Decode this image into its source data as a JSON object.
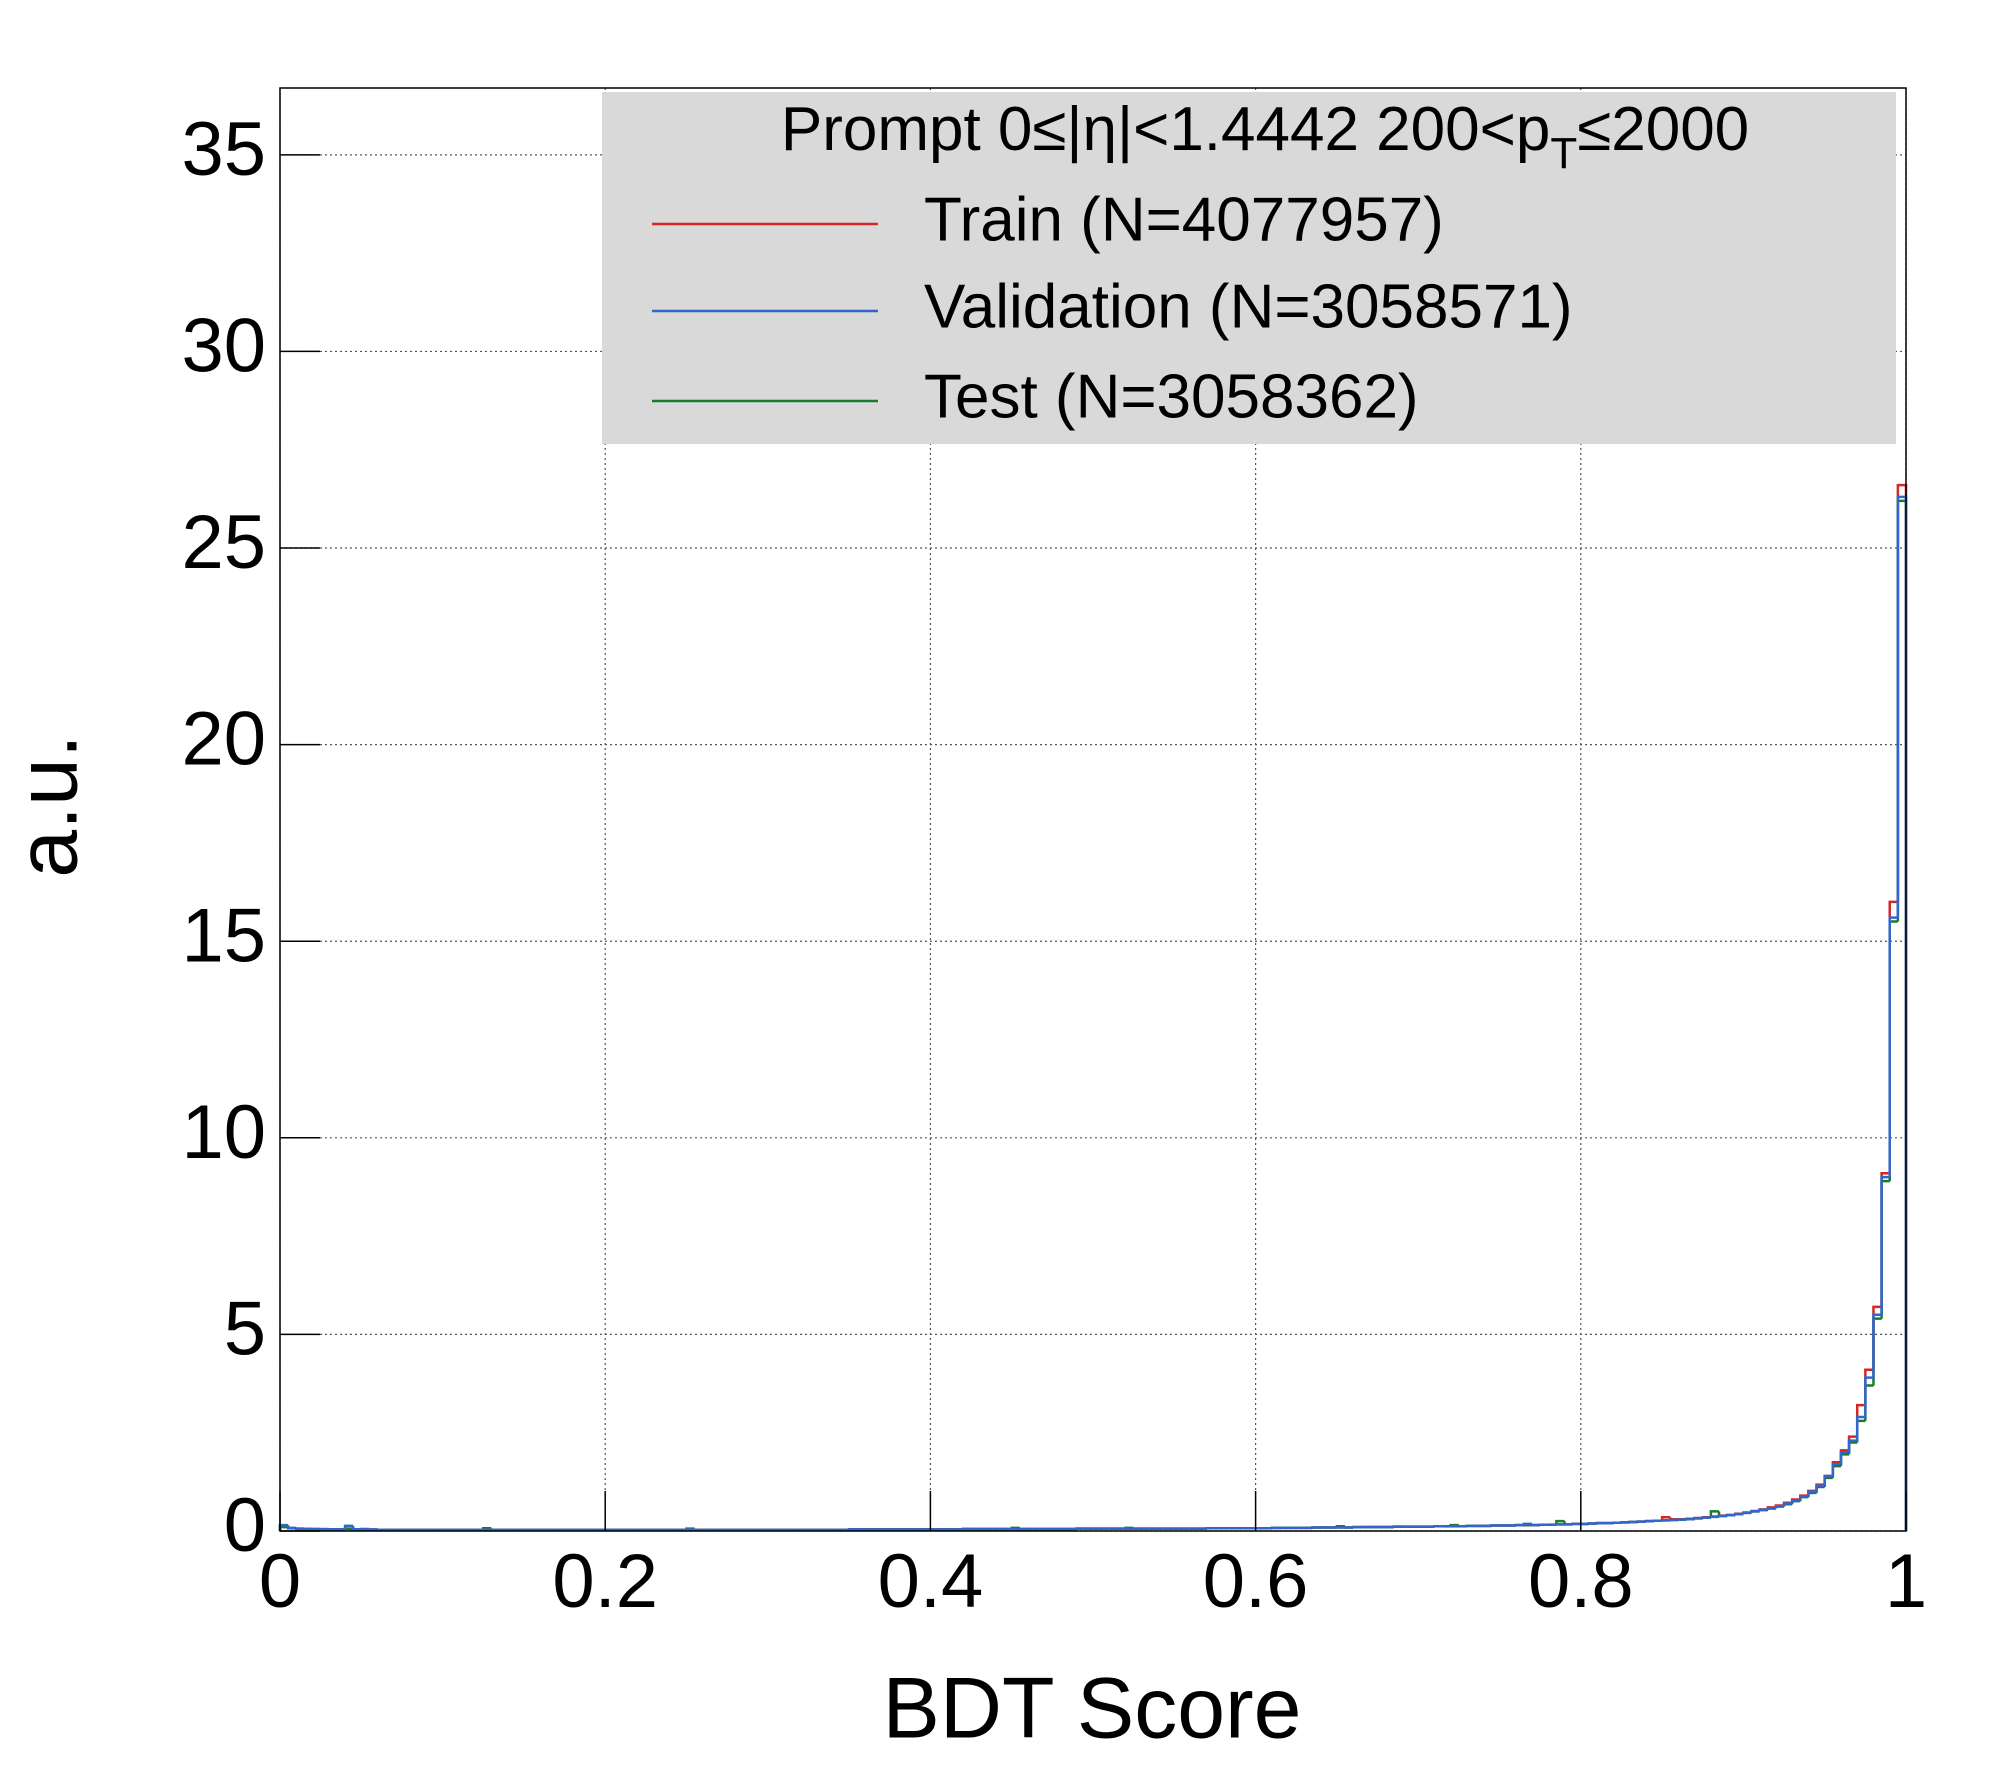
{
  "chart_data": {
    "type": "histogram",
    "xlabel": "BDT Score",
    "ylabel": "a.u.",
    "legend_title": [
      "Prompt  0≤|η|<1.4442  200<p",
      "T",
      "≤2000"
    ],
    "xlim": [
      0,
      1
    ],
    "ylim": [
      0,
      36.7
    ],
    "xticks": [
      0,
      0.2,
      0.4,
      0.6,
      0.8,
      1
    ],
    "yticks": [
      0,
      5,
      10,
      15,
      20,
      25,
      30,
      35
    ],
    "grid": true,
    "legend": "upper right",
    "bins": [
      0,
      0.005,
      0.01,
      0.015,
      0.02,
      0.025,
      0.03,
      0.035,
      0.04,
      0.045,
      0.05,
      0.055,
      0.06,
      0.065,
      0.07,
      0.075,
      0.08,
      0.085,
      0.09,
      0.095,
      0.1,
      0.105,
      0.11,
      0.115,
      0.12,
      0.125,
      0.13,
      0.135,
      0.14,
      0.145,
      0.15,
      0.155,
      0.16,
      0.165,
      0.17,
      0.175,
      0.18,
      0.185,
      0.19,
      0.195,
      0.2,
      0.205,
      0.21,
      0.215,
      0.22,
      0.225,
      0.23,
      0.235,
      0.24,
      0.245,
      0.25,
      0.255,
      0.26,
      0.265,
      0.27,
      0.275,
      0.28,
      0.285,
      0.29,
      0.295,
      0.3,
      0.305,
      0.31,
      0.315,
      0.32,
      0.325,
      0.33,
      0.335,
      0.34,
      0.345,
      0.35,
      0.355,
      0.36,
      0.365,
      0.37,
      0.375,
      0.38,
      0.385,
      0.39,
      0.395,
      0.4,
      0.405,
      0.41,
      0.415,
      0.42,
      0.425,
      0.43,
      0.435,
      0.44,
      0.445,
      0.45,
      0.455,
      0.46,
      0.465,
      0.47,
      0.475,
      0.48,
      0.485,
      0.49,
      0.495,
      0.5,
      0.505,
      0.51,
      0.515,
      0.52,
      0.525,
      0.53,
      0.535,
      0.54,
      0.545,
      0.55,
      0.555,
      0.56,
      0.565,
      0.57,
      0.575,
      0.58,
      0.585,
      0.59,
      0.595,
      0.6,
      0.605,
      0.61,
      0.615,
      0.62,
      0.625,
      0.63,
      0.635,
      0.64,
      0.645,
      0.65,
      0.655,
      0.66,
      0.665,
      0.67,
      0.675,
      0.68,
      0.685,
      0.69,
      0.695,
      0.7,
      0.705,
      0.71,
      0.715,
      0.72,
      0.725,
      0.73,
      0.735,
      0.74,
      0.745,
      0.75,
      0.755,
      0.76,
      0.765,
      0.77,
      0.775,
      0.78,
      0.785,
      0.79,
      0.795,
      0.8,
      0.805,
      0.81,
      0.815,
      0.82,
      0.825,
      0.83,
      0.835,
      0.84,
      0.845,
      0.85,
      0.855,
      0.86,
      0.865,
      0.87,
      0.875,
      0.88,
      0.885,
      0.89,
      0.895,
      0.9,
      0.905,
      0.91,
      0.915,
      0.92,
      0.925,
      0.93,
      0.935,
      0.94,
      0.945,
      0.95,
      0.955,
      0.96,
      0.965,
      0.97,
      0.975,
      0.98,
      0.985,
      0.99,
      0.995,
      1
    ],
    "series": [
      {
        "name": "Train (N=4077957)",
        "color": "#d62728",
        "values": [
          0.12,
          0.07,
          0.06,
          0.05,
          0.05,
          0.04,
          0.04,
          0.04,
          0.06,
          0.04,
          0.04,
          0.04,
          0.03,
          0.03,
          0.03,
          0.03,
          0.03,
          0.03,
          0.03,
          0.03,
          0.03,
          0.03,
          0.03,
          0.03,
          0.03,
          0.03,
          0.03,
          0.03,
          0.03,
          0.03,
          0.03,
          0.03,
          0.03,
          0.03,
          0.03,
          0.03,
          0.03,
          0.03,
          0.03,
          0.03,
          0.03,
          0.03,
          0.03,
          0.03,
          0.03,
          0.03,
          0.03,
          0.03,
          0.03,
          0.03,
          0.03,
          0.03,
          0.03,
          0.03,
          0.03,
          0.03,
          0.03,
          0.03,
          0.03,
          0.03,
          0.03,
          0.03,
          0.03,
          0.03,
          0.03,
          0.03,
          0.03,
          0.03,
          0.03,
          0.03,
          0.04,
          0.04,
          0.04,
          0.04,
          0.04,
          0.04,
          0.04,
          0.04,
          0.04,
          0.04,
          0.04,
          0.04,
          0.04,
          0.04,
          0.05,
          0.05,
          0.05,
          0.05,
          0.05,
          0.05,
          0.05,
          0.05,
          0.05,
          0.05,
          0.05,
          0.05,
          0.05,
          0.05,
          0.06,
          0.06,
          0.06,
          0.06,
          0.06,
          0.06,
          0.06,
          0.06,
          0.06,
          0.06,
          0.06,
          0.06,
          0.06,
          0.06,
          0.06,
          0.06,
          0.07,
          0.07,
          0.07,
          0.07,
          0.07,
          0.07,
          0.07,
          0.07,
          0.08,
          0.08,
          0.08,
          0.08,
          0.08,
          0.09,
          0.09,
          0.09,
          0.09,
          0.09,
          0.1,
          0.1,
          0.1,
          0.1,
          0.1,
          0.11,
          0.11,
          0.11,
          0.11,
          0.11,
          0.12,
          0.12,
          0.12,
          0.12,
          0.13,
          0.13,
          0.13,
          0.14,
          0.14,
          0.14,
          0.15,
          0.15,
          0.15,
          0.16,
          0.16,
          0.17,
          0.17,
          0.18,
          0.18,
          0.19,
          0.2,
          0.2,
          0.21,
          0.22,
          0.23,
          0.24,
          0.25,
          0.26,
          0.35,
          0.3,
          0.3,
          0.31,
          0.33,
          0.35,
          0.37,
          0.39,
          0.41,
          0.44,
          0.47,
          0.51,
          0.55,
          0.6,
          0.65,
          0.72,
          0.8,
          0.9,
          1.02,
          1.18,
          1.4,
          1.75,
          2.05,
          2.4,
          3.2,
          4.1,
          5.7,
          9.1,
          16.0,
          26.6
        ]
      },
      {
        "name": "Validation (N=3058571)",
        "color": "#3366cc",
        "values": [
          0.15,
          0.08,
          0.06,
          0.05,
          0.05,
          0.05,
          0.04,
          0.04,
          0.13,
          0.04,
          0.05,
          0.04,
          0.03,
          0.03,
          0.03,
          0.03,
          0.03,
          0.03,
          0.03,
          0.03,
          0.03,
          0.03,
          0.03,
          0.03,
          0.03,
          0.03,
          0.03,
          0.03,
          0.03,
          0.03,
          0.03,
          0.03,
          0.03,
          0.03,
          0.03,
          0.03,
          0.03,
          0.03,
          0.03,
          0.03,
          0.03,
          0.03,
          0.03,
          0.03,
          0.03,
          0.03,
          0.03,
          0.03,
          0.03,
          0.03,
          0.04,
          0.03,
          0.03,
          0.03,
          0.03,
          0.03,
          0.03,
          0.03,
          0.03,
          0.03,
          0.03,
          0.03,
          0.03,
          0.03,
          0.03,
          0.03,
          0.03,
          0.03,
          0.03,
          0.03,
          0.04,
          0.04,
          0.04,
          0.04,
          0.04,
          0.04,
          0.04,
          0.04,
          0.04,
          0.04,
          0.04,
          0.04,
          0.04,
          0.04,
          0.05,
          0.05,
          0.05,
          0.05,
          0.05,
          0.05,
          0.05,
          0.05,
          0.05,
          0.05,
          0.05,
          0.05,
          0.05,
          0.05,
          0.06,
          0.06,
          0.06,
          0.06,
          0.06,
          0.06,
          0.06,
          0.06,
          0.06,
          0.06,
          0.06,
          0.06,
          0.06,
          0.06,
          0.06,
          0.06,
          0.07,
          0.07,
          0.07,
          0.07,
          0.07,
          0.07,
          0.07,
          0.07,
          0.08,
          0.08,
          0.08,
          0.08,
          0.08,
          0.09,
          0.09,
          0.09,
          0.09,
          0.09,
          0.1,
          0.1,
          0.1,
          0.1,
          0.1,
          0.11,
          0.11,
          0.11,
          0.11,
          0.11,
          0.12,
          0.12,
          0.12,
          0.12,
          0.13,
          0.13,
          0.13,
          0.14,
          0.14,
          0.14,
          0.15,
          0.18,
          0.15,
          0.16,
          0.16,
          0.17,
          0.17,
          0.18,
          0.18,
          0.19,
          0.2,
          0.2,
          0.21,
          0.22,
          0.23,
          0.24,
          0.25,
          0.26,
          0.27,
          0.28,
          0.29,
          0.3,
          0.32,
          0.34,
          0.36,
          0.38,
          0.4,
          0.43,
          0.46,
          0.5,
          0.54,
          0.58,
          0.63,
          0.7,
          0.78,
          0.88,
          1.0,
          1.15,
          1.4,
          1.7,
          2.0,
          2.3,
          2.9,
          3.9,
          5.5,
          9.0,
          15.6,
          26.3
        ]
      },
      {
        "name": "Test (N=3058362)",
        "color": "#1a7a2e",
        "values": [
          0.1,
          0.07,
          0.05,
          0.05,
          0.04,
          0.04,
          0.04,
          0.04,
          0.05,
          0.04,
          0.04,
          0.03,
          0.03,
          0.03,
          0.03,
          0.03,
          0.03,
          0.03,
          0.03,
          0.03,
          0.03,
          0.03,
          0.03,
          0.03,
          0.03,
          0.07,
          0.03,
          0.03,
          0.03,
          0.03,
          0.03,
          0.03,
          0.03,
          0.03,
          0.03,
          0.03,
          0.03,
          0.03,
          0.03,
          0.03,
          0.03,
          0.03,
          0.03,
          0.03,
          0.03,
          0.03,
          0.03,
          0.03,
          0.03,
          0.03,
          0.06,
          0.03,
          0.03,
          0.03,
          0.03,
          0.03,
          0.03,
          0.03,
          0.03,
          0.03,
          0.03,
          0.03,
          0.03,
          0.03,
          0.03,
          0.03,
          0.03,
          0.03,
          0.03,
          0.03,
          0.04,
          0.04,
          0.04,
          0.04,
          0.04,
          0.04,
          0.04,
          0.04,
          0.04,
          0.04,
          0.04,
          0.04,
          0.04,
          0.04,
          0.05,
          0.05,
          0.05,
          0.05,
          0.05,
          0.05,
          0.08,
          0.05,
          0.05,
          0.05,
          0.05,
          0.05,
          0.05,
          0.05,
          0.06,
          0.06,
          0.06,
          0.06,
          0.06,
          0.06,
          0.08,
          0.06,
          0.06,
          0.06,
          0.06,
          0.06,
          0.06,
          0.06,
          0.06,
          0.06,
          0.07,
          0.07,
          0.07,
          0.07,
          0.07,
          0.07,
          0.07,
          0.07,
          0.08,
          0.08,
          0.08,
          0.08,
          0.08,
          0.09,
          0.09,
          0.09,
          0.12,
          0.09,
          0.1,
          0.1,
          0.1,
          0.1,
          0.1,
          0.11,
          0.11,
          0.11,
          0.11,
          0.11,
          0.12,
          0.12,
          0.15,
          0.12,
          0.13,
          0.13,
          0.13,
          0.14,
          0.14,
          0.14,
          0.15,
          0.15,
          0.15,
          0.16,
          0.16,
          0.25,
          0.17,
          0.18,
          0.18,
          0.19,
          0.2,
          0.2,
          0.21,
          0.22,
          0.23,
          0.24,
          0.25,
          0.26,
          0.27,
          0.28,
          0.29,
          0.3,
          0.32,
          0.34,
          0.5,
          0.38,
          0.4,
          0.43,
          0.46,
          0.5,
          0.53,
          0.57,
          0.62,
          0.68,
          0.76,
          0.86,
          0.97,
          1.12,
          1.35,
          1.65,
          1.95,
          2.25,
          2.8,
          3.7,
          5.4,
          8.9,
          15.5,
          26.2
        ]
      }
    ]
  }
}
